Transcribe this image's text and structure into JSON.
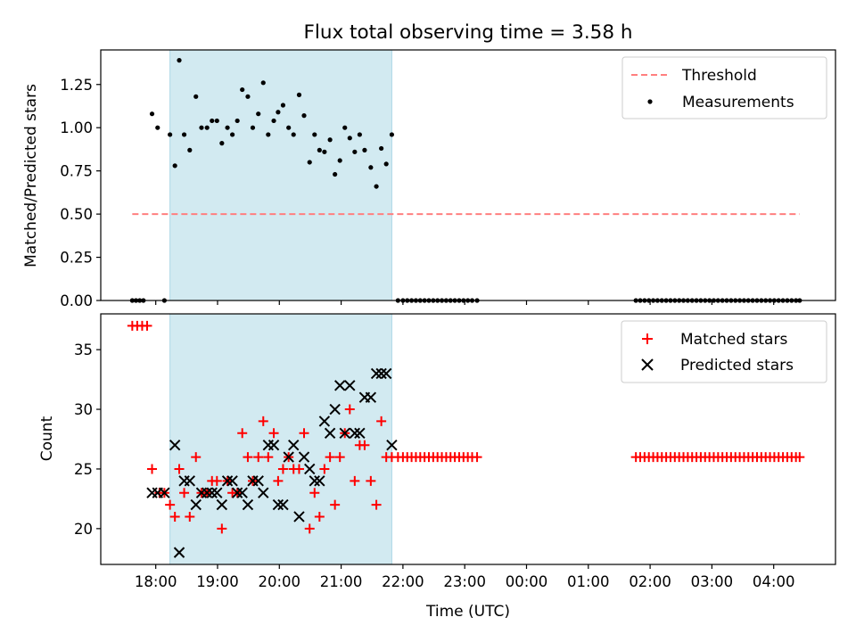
{
  "chart_data": {
    "title": "Flux total observing time = 3.58 h",
    "xlabel": "Time (UTC)",
    "x_ticks": [
      "18:00",
      "19:00",
      "20:00",
      "21:00",
      "22:00",
      "23:00",
      "00:00",
      "01:00",
      "02:00",
      "03:00",
      "04:00"
    ],
    "x_start_hours": 17.11,
    "x_end_hours": 29.0,
    "x_tick_first_hours": 18.0,
    "shaded_span_hours": [
      18.23,
      21.82
    ],
    "shade_color": "#add8e6",
    "top": {
      "type": "scatter",
      "ylabel": "Matched/Predicted stars",
      "ylim": [
        0,
        1.45
      ],
      "y_ticks": [
        "0.00",
        "0.25",
        "0.50",
        "0.75",
        "1.00",
        "1.25"
      ],
      "legend_position": "upper right",
      "threshold": {
        "name": "Threshold",
        "value": 0.5,
        "x_range_hours": [
          17.62,
          28.42
        ],
        "color": "#ff7f7f"
      },
      "measurements": {
        "name": "Measurements",
        "color": "#000000",
        "points": [
          [
            17.62,
            0
          ],
          [
            17.68,
            0
          ],
          [
            17.74,
            0
          ],
          [
            17.8,
            0
          ],
          [
            17.94,
            1.08
          ],
          [
            18.03,
            1.0
          ],
          [
            18.14,
            0
          ],
          [
            18.23,
            0.96
          ],
          [
            18.31,
            0.78
          ],
          [
            18.38,
            1.39
          ],
          [
            18.46,
            0.96
          ],
          [
            18.55,
            0.87
          ],
          [
            18.65,
            1.18
          ],
          [
            18.74,
            1.0
          ],
          [
            18.83,
            1.0
          ],
          [
            18.91,
            1.04
          ],
          [
            18.99,
            1.04
          ],
          [
            19.07,
            0.91
          ],
          [
            19.16,
            1.0
          ],
          [
            19.24,
            0.96
          ],
          [
            19.32,
            1.04
          ],
          [
            19.4,
            1.22
          ],
          [
            19.49,
            1.18
          ],
          [
            19.57,
            1.0
          ],
          [
            19.66,
            1.08
          ],
          [
            19.74,
            1.26
          ],
          [
            19.82,
            0.96
          ],
          [
            19.91,
            1.04
          ],
          [
            19.98,
            1.09
          ],
          [
            20.06,
            1.13
          ],
          [
            20.15,
            1.0
          ],
          [
            20.23,
            0.96
          ],
          [
            20.32,
            1.19
          ],
          [
            20.4,
            1.07
          ],
          [
            20.49,
            0.8
          ],
          [
            20.57,
            0.96
          ],
          [
            20.65,
            0.87
          ],
          [
            20.73,
            0.86
          ],
          [
            20.82,
            0.93
          ],
          [
            20.9,
            0.73
          ],
          [
            20.98,
            0.81
          ],
          [
            21.06,
            1.0
          ],
          [
            21.14,
            0.94
          ],
          [
            21.22,
            0.86
          ],
          [
            21.3,
            0.96
          ],
          [
            21.38,
            0.87
          ],
          [
            21.48,
            0.77
          ],
          [
            21.57,
            0.66
          ],
          [
            21.65,
            0.88
          ],
          [
            21.73,
            0.79
          ],
          [
            21.82,
            0.96
          ],
          [
            21.92,
            0
          ],
          [
            22.0,
            0
          ],
          [
            22.07,
            0
          ],
          [
            22.14,
            0
          ],
          [
            22.21,
            0
          ],
          [
            22.28,
            0
          ],
          [
            22.35,
            0
          ],
          [
            22.42,
            0
          ],
          [
            22.49,
            0
          ],
          [
            22.56,
            0
          ],
          [
            22.63,
            0
          ],
          [
            22.7,
            0
          ],
          [
            22.77,
            0
          ],
          [
            22.84,
            0
          ],
          [
            22.91,
            0
          ],
          [
            22.98,
            0
          ],
          [
            23.05,
            0
          ],
          [
            23.12,
            0
          ],
          [
            23.2,
            0
          ],
          [
            25.77,
            0
          ],
          [
            25.84,
            0
          ],
          [
            25.91,
            0
          ],
          [
            25.98,
            0
          ],
          [
            26.05,
            0
          ],
          [
            26.12,
            0
          ],
          [
            26.19,
            0
          ],
          [
            26.26,
            0
          ],
          [
            26.33,
            0
          ],
          [
            26.4,
            0
          ],
          [
            26.47,
            0
          ],
          [
            26.54,
            0
          ],
          [
            26.61,
            0
          ],
          [
            26.68,
            0
          ],
          [
            26.75,
            0
          ],
          [
            26.82,
            0
          ],
          [
            26.89,
            0
          ],
          [
            26.96,
            0
          ],
          [
            27.03,
            0
          ],
          [
            27.1,
            0
          ],
          [
            27.17,
            0
          ],
          [
            27.24,
            0
          ],
          [
            27.31,
            0
          ],
          [
            27.38,
            0
          ],
          [
            27.45,
            0
          ],
          [
            27.52,
            0
          ],
          [
            27.59,
            0
          ],
          [
            27.66,
            0
          ],
          [
            27.73,
            0
          ],
          [
            27.8,
            0
          ],
          [
            27.87,
            0
          ],
          [
            27.94,
            0
          ],
          [
            28.01,
            0
          ],
          [
            28.08,
            0
          ],
          [
            28.15,
            0
          ],
          [
            28.22,
            0
          ],
          [
            28.29,
            0
          ],
          [
            28.36,
            0
          ],
          [
            28.42,
            0
          ]
        ]
      }
    },
    "bottom": {
      "type": "scatter",
      "ylabel": "Count",
      "ylim": [
        17,
        38
      ],
      "y_ticks": [
        "20",
        "25",
        "30",
        "35"
      ],
      "legend_position": "upper right",
      "matched": {
        "name": "Matched stars",
        "color": "#ff0000",
        "points": [
          [
            17.62,
            37
          ],
          [
            17.7,
            37
          ],
          [
            17.78,
            37
          ],
          [
            17.86,
            37
          ],
          [
            17.94,
            25
          ],
          [
            18.06,
            23
          ],
          [
            18.14,
            23
          ],
          [
            18.23,
            22
          ],
          [
            18.31,
            21
          ],
          [
            18.38,
            25
          ],
          [
            18.46,
            23
          ],
          [
            18.55,
            21
          ],
          [
            18.65,
            26
          ],
          [
            18.74,
            23
          ],
          [
            18.83,
            23
          ],
          [
            18.91,
            24
          ],
          [
            18.99,
            24
          ],
          [
            19.07,
            20
          ],
          [
            19.16,
            24
          ],
          [
            19.24,
            23
          ],
          [
            19.32,
            23
          ],
          [
            19.4,
            28
          ],
          [
            19.49,
            26
          ],
          [
            19.57,
            24
          ],
          [
            19.66,
            26
          ],
          [
            19.74,
            29
          ],
          [
            19.82,
            26
          ],
          [
            19.91,
            28
          ],
          [
            19.98,
            24
          ],
          [
            20.06,
            25
          ],
          [
            20.15,
            26
          ],
          [
            20.23,
            25
          ],
          [
            20.32,
            25
          ],
          [
            20.4,
            28
          ],
          [
            20.49,
            20
          ],
          [
            20.57,
            23
          ],
          [
            20.65,
            21
          ],
          [
            20.73,
            25
          ],
          [
            20.82,
            26
          ],
          [
            20.9,
            22
          ],
          [
            20.98,
            26
          ],
          [
            21.06,
            28
          ],
          [
            21.14,
            30
          ],
          [
            21.22,
            24
          ],
          [
            21.3,
            27
          ],
          [
            21.38,
            27
          ],
          [
            21.48,
            24
          ],
          [
            21.57,
            22
          ],
          [
            21.65,
            29
          ],
          [
            21.73,
            26
          ],
          [
            21.82,
            26
          ],
          [
            21.92,
            26
          ],
          [
            22.0,
            26
          ],
          [
            22.07,
            26
          ],
          [
            22.14,
            26
          ],
          [
            22.21,
            26
          ],
          [
            22.28,
            26
          ],
          [
            22.35,
            26
          ],
          [
            22.42,
            26
          ],
          [
            22.49,
            26
          ],
          [
            22.56,
            26
          ],
          [
            22.63,
            26
          ],
          [
            22.7,
            26
          ],
          [
            22.77,
            26
          ],
          [
            22.84,
            26
          ],
          [
            22.91,
            26
          ],
          [
            22.98,
            26
          ],
          [
            23.05,
            26
          ],
          [
            23.12,
            26
          ],
          [
            23.2,
            26
          ],
          [
            25.77,
            26
          ],
          [
            25.84,
            26
          ],
          [
            25.91,
            26
          ],
          [
            25.98,
            26
          ],
          [
            26.05,
            26
          ],
          [
            26.12,
            26
          ],
          [
            26.19,
            26
          ],
          [
            26.26,
            26
          ],
          [
            26.33,
            26
          ],
          [
            26.4,
            26
          ],
          [
            26.47,
            26
          ],
          [
            26.54,
            26
          ],
          [
            26.61,
            26
          ],
          [
            26.68,
            26
          ],
          [
            26.75,
            26
          ],
          [
            26.82,
            26
          ],
          [
            26.89,
            26
          ],
          [
            26.96,
            26
          ],
          [
            27.03,
            26
          ],
          [
            27.1,
            26
          ],
          [
            27.17,
            26
          ],
          [
            27.24,
            26
          ],
          [
            27.31,
            26
          ],
          [
            27.38,
            26
          ],
          [
            27.45,
            26
          ],
          [
            27.52,
            26
          ],
          [
            27.59,
            26
          ],
          [
            27.66,
            26
          ],
          [
            27.73,
            26
          ],
          [
            27.8,
            26
          ],
          [
            27.87,
            26
          ],
          [
            27.94,
            26
          ],
          [
            28.01,
            26
          ],
          [
            28.08,
            26
          ],
          [
            28.15,
            26
          ],
          [
            28.22,
            26
          ],
          [
            28.29,
            26
          ],
          [
            28.36,
            26
          ],
          [
            28.42,
            26
          ]
        ]
      },
      "predicted": {
        "name": "Predicted stars",
        "color": "#000000",
        "points": [
          [
            17.94,
            23
          ],
          [
            18.03,
            23
          ],
          [
            18.14,
            23
          ],
          [
            18.31,
            27
          ],
          [
            18.38,
            18
          ],
          [
            18.46,
            24
          ],
          [
            18.55,
            24
          ],
          [
            18.65,
            22
          ],
          [
            18.74,
            23
          ],
          [
            18.83,
            23
          ],
          [
            18.91,
            23
          ],
          [
            18.99,
            23
          ],
          [
            19.07,
            22
          ],
          [
            19.16,
            24
          ],
          [
            19.24,
            24
          ],
          [
            19.32,
            23
          ],
          [
            19.4,
            23
          ],
          [
            19.49,
            22
          ],
          [
            19.57,
            24
          ],
          [
            19.66,
            24
          ],
          [
            19.74,
            23
          ],
          [
            19.82,
            27
          ],
          [
            19.91,
            27
          ],
          [
            19.98,
            22
          ],
          [
            20.06,
            22
          ],
          [
            20.15,
            26
          ],
          [
            20.23,
            27
          ],
          [
            20.32,
            21
          ],
          [
            20.4,
            26
          ],
          [
            20.49,
            25
          ],
          [
            20.57,
            24
          ],
          [
            20.65,
            24
          ],
          [
            20.73,
            29
          ],
          [
            20.82,
            28
          ],
          [
            20.9,
            30
          ],
          [
            20.98,
            32
          ],
          [
            21.06,
            28
          ],
          [
            21.14,
            32
          ],
          [
            21.22,
            28
          ],
          [
            21.3,
            28
          ],
          [
            21.38,
            31
          ],
          [
            21.48,
            31
          ],
          [
            21.57,
            33
          ],
          [
            21.65,
            33
          ],
          [
            21.73,
            33
          ],
          [
            21.82,
            27
          ]
        ]
      }
    }
  }
}
